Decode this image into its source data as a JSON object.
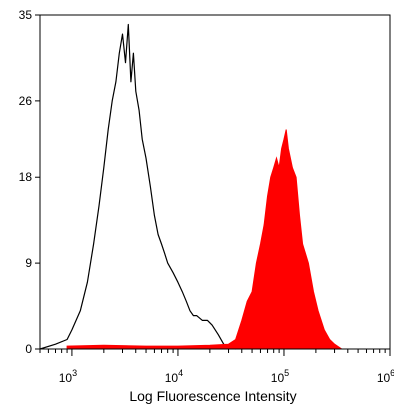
{
  "chart_data": {
    "type": "area",
    "title": "",
    "xlabel": "Log Fluorescence Intensity",
    "ylabel": "",
    "x_scale": "log",
    "xlim": [
      500,
      1000000
    ],
    "ylim": [
      0,
      35
    ],
    "yticks": [
      0,
      9,
      18,
      26,
      35
    ],
    "yticklabels": [
      "0",
      "9",
      "18",
      "26",
      "35"
    ],
    "xticks": [
      {
        "value": 1000,
        "base": "10",
        "exp": "3"
      },
      {
        "value": 10000,
        "base": "10",
        "exp": "4"
      },
      {
        "value": 100000,
        "base": "10",
        "exp": "5"
      },
      {
        "value": 1000000,
        "base": "10",
        "exp": "6"
      }
    ],
    "grid": false,
    "series": [
      {
        "style": "outline",
        "color": "#000000",
        "x": [
          500,
          700,
          900,
          1000,
          1200,
          1400,
          1600,
          1800,
          2000,
          2200,
          2400,
          2600,
          2800,
          3000,
          3200,
          3400,
          3600,
          3800,
          4000,
          4300,
          4600,
          5000,
          5500,
          6000,
          6500,
          7000,
          7500,
          8000,
          9000,
          10000,
          11000,
          12000,
          13000,
          14000,
          15000,
          17000,
          19000,
          21000,
          24000,
          27000,
          30000,
          35000
        ],
        "y": [
          0,
          0.5,
          1,
          2,
          4,
          7,
          11,
          15,
          19,
          23,
          26,
          28,
          31,
          33,
          30,
          34,
          28,
          31,
          27,
          25,
          22,
          20,
          17,
          14,
          12,
          11,
          10,
          9,
          8,
          7,
          6,
          5,
          4,
          3.5,
          3.5,
          3,
          3,
          2.5,
          1.5,
          0.5,
          0.2,
          0
        ]
      },
      {
        "style": "filled",
        "color": "#ff0000",
        "x": [
          900,
          2000,
          5000,
          10000,
          20000,
          30000,
          35000,
          40000,
          45000,
          50000,
          55000,
          60000,
          65000,
          70000,
          75000,
          80000,
          85000,
          90000,
          95000,
          100000,
          105000,
          110000,
          120000,
          130000,
          140000,
          150000,
          170000,
          190000,
          210000,
          240000,
          270000,
          300000,
          350000
        ],
        "y": [
          0.3,
          0.4,
          0.3,
          0.3,
          0.4,
          0.5,
          1,
          3,
          5,
          6,
          9,
          11,
          13,
          16,
          18,
          19,
          20,
          19,
          21,
          22,
          23,
          21,
          19,
          18,
          14,
          11,
          9,
          6,
          4,
          2,
          1,
          0.5,
          0
        ]
      }
    ]
  }
}
